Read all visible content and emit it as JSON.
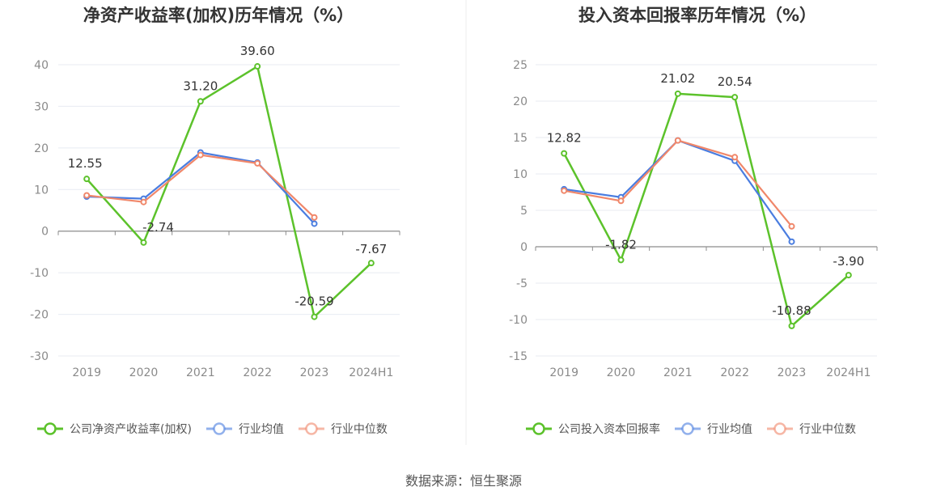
{
  "source": "数据来源：恒生聚源",
  "chart_data": [
    {
      "type": "line",
      "title": "净资产收益率(加权)历年情况（%）",
      "categories": [
        "2019",
        "2020",
        "2021",
        "2022",
        "2023",
        "2024H1"
      ],
      "ylim": [
        -30,
        40
      ],
      "yticks": [
        -30,
        -20,
        -10,
        0,
        10,
        20,
        30,
        40
      ],
      "grid": true,
      "legend": "bottom",
      "series": [
        {
          "name": "公司净资产收益率(加权)",
          "color": "#5cc22b",
          "values": [
            12.55,
            -2.74,
            31.2,
            39.6,
            -20.59,
            -7.67
          ],
          "labels": [
            "12.55",
            "-2.74",
            "31.20",
            "39.60",
            "-20.59",
            "-7.67"
          ]
        },
        {
          "name": "行业均值",
          "color": "#4a7de0",
          "values": [
            8.3,
            7.8,
            18.9,
            16.5,
            1.8,
            null
          ]
        },
        {
          "name": "行业中位数",
          "color": "#f0876a",
          "values": [
            8.6,
            7.0,
            18.3,
            16.3,
            3.3,
            null
          ]
        }
      ]
    },
    {
      "type": "line",
      "title": "投入资本回报率历年情况（%）",
      "categories": [
        "2019",
        "2020",
        "2021",
        "2022",
        "2023",
        "2024H1"
      ],
      "ylim": [
        -15,
        25
      ],
      "yticks": [
        -15,
        -10,
        -5,
        0,
        5,
        10,
        15,
        20,
        25
      ],
      "grid": true,
      "legend": "bottom",
      "series": [
        {
          "name": "公司投入资本回报率",
          "color": "#5cc22b",
          "values": [
            12.82,
            -1.82,
            21.02,
            20.54,
            -10.88,
            -3.9
          ],
          "labels": [
            "12.82",
            "-1.82",
            "21.02",
            "20.54",
            "-10.88",
            "-3.90"
          ]
        },
        {
          "name": "行业均值",
          "color": "#4a7de0",
          "values": [
            7.9,
            6.8,
            14.6,
            11.8,
            0.7,
            null
          ]
        },
        {
          "name": "行业中位数",
          "color": "#f0876a",
          "values": [
            7.7,
            6.3,
            14.6,
            12.3,
            2.8,
            null
          ]
        }
      ]
    }
  ]
}
